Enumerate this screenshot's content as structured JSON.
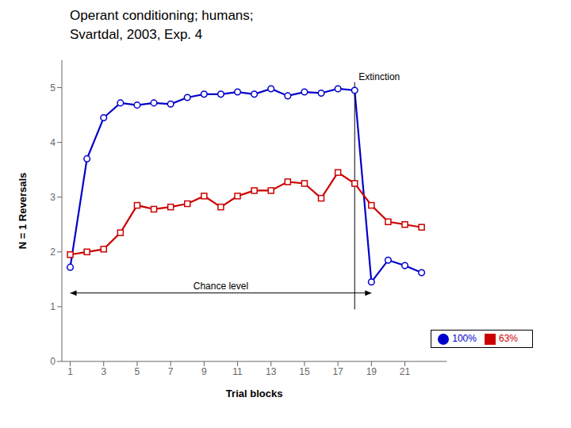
{
  "chart_data": {
    "type": "line",
    "title": "Operant conditioning; humans;",
    "subtitle": "Svartdal, 2003, Exp. 4",
    "x_label": "Trial blocks",
    "y_label": "N = 1 Reversals",
    "x": [
      1,
      2,
      3,
      4,
      5,
      6,
      7,
      8,
      9,
      10,
      11,
      12,
      13,
      14,
      15,
      16,
      17,
      18,
      19,
      20,
      21,
      22
    ],
    "series": [
      {
        "name": "100%",
        "color": "#0000cc",
        "marker": "circle",
        "values": [
          1.72,
          3.7,
          4.45,
          4.72,
          4.68,
          4.72,
          4.7,
          4.82,
          4.88,
          4.88,
          4.92,
          4.88,
          4.98,
          4.85,
          4.92,
          4.9,
          4.98,
          4.95,
          1.45,
          1.85,
          1.75,
          1.62
        ]
      },
      {
        "name": "63%",
        "color": "#cc0000",
        "marker": "square",
        "values": [
          1.95,
          2.0,
          2.05,
          2.35,
          2.85,
          2.78,
          2.82,
          2.88,
          3.02,
          2.82,
          3.02,
          3.12,
          3.12,
          3.28,
          3.25,
          2.98,
          3.45,
          3.25,
          2.85,
          2.55,
          2.5,
          2.45
        ]
      }
    ],
    "xlim": [
      0.5,
      23.5
    ],
    "ylim": [
      0,
      5.5
    ],
    "xticks": [
      1,
      3,
      5,
      7,
      9,
      11,
      13,
      15,
      17,
      19,
      21
    ],
    "yticks": [
      0,
      1,
      2,
      3,
      4,
      5
    ],
    "grid": false,
    "legend": "lower right",
    "annotations": [
      {
        "type": "double_arrow",
        "text": "Chance level",
        "x_start": 1,
        "x_end": 19,
        "y": 1.25
      },
      {
        "type": "vline",
        "text": "Extinction",
        "x": 18.0,
        "y_start": 0.95,
        "y_end": 5.1
      }
    ]
  }
}
